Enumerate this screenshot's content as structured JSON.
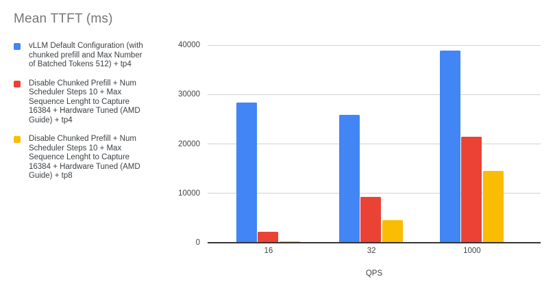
{
  "title": "Mean TTFT (ms)",
  "chart_data": {
    "type": "bar",
    "title": "Mean TTFT (ms)",
    "xlabel": "QPS",
    "ylabel": "",
    "categories": [
      "16",
      "32",
      "1000"
    ],
    "series": [
      {
        "name": "vLLM Default Configuration (with\nchunked prefill and Max Number\nof Batched Tokens 512) + tp4",
        "color": "#4285F4",
        "values": [
          28400,
          25900,
          38900
        ]
      },
      {
        "name": "Disable Chunked Prefill + Num\nScheduler Steps 10 + Max\nSequence Lenght to Capture\n16384 + Hardware Tuned (AMD\nGuide) + tp4",
        "color": "#EA4335",
        "values": [
          2200,
          9300,
          21500
        ]
      },
      {
        "name": "Disable Chunked Prefill + Num\nScheduler Steps 10 + Max\nSequence Lenght to Capture\n16384 + Hardware Tuned (AMD\nGuide) + tp8",
        "color": "#FBBC04",
        "values": [
          300,
          4600,
          14500
        ]
      }
    ],
    "ylim": [
      0,
      40000
    ],
    "yticks": [
      0,
      10000,
      20000,
      30000,
      40000
    ],
    "grid": true,
    "legend_position": "left",
    "colors": {
      "title_text": "#757575",
      "label_text": "#424242",
      "legend_text": "#3c4043",
      "gridline": "#d2d2d2",
      "axis_line": "#333333",
      "background": "#ffffff"
    }
  }
}
